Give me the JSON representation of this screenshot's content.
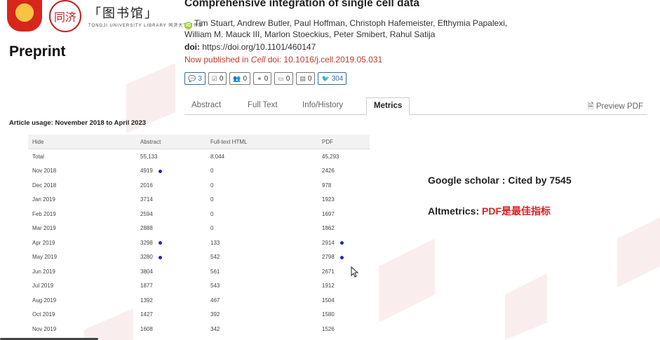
{
  "logos": {
    "seal_text": "同济",
    "library_cn": "「图书馆」",
    "library_sub": "TONGJI UNIVERSITY LIBRARY 同济大学图书馆"
  },
  "left_label": "Preprint",
  "article": {
    "title": "Comprehensive integration of single cell data",
    "authors_line1": "Tim Stuart, Andrew Butler, Paul Hoffman, Christoph Hafemeister, Efthymia Papalexi,",
    "authors_line2": "William M. Mauck III, Marlon Stoeckius, Peter Smibert, Rahul Satija",
    "doi_label": "doi:",
    "doi_value": "https://doi.org/10.1101/460147",
    "published_prefix": "Now published in",
    "published_journal": "Cell",
    "published_doi": "doi: 10.1016/j.cell.2019.05.031"
  },
  "badges": [
    {
      "icon": "comment-icon",
      "glyph": "💬",
      "count": "3"
    },
    {
      "icon": "check-icon",
      "glyph": "☑",
      "count": "0"
    },
    {
      "icon": "users-icon",
      "glyph": "👥",
      "count": "0"
    },
    {
      "icon": "share-icon",
      "glyph": "⚭",
      "count": "0"
    },
    {
      "icon": "monitor-icon",
      "glyph": "▭",
      "count": "0"
    },
    {
      "icon": "film-icon",
      "glyph": "▤",
      "count": "0"
    },
    {
      "icon": "twitter-icon",
      "glyph": "🐦",
      "count": "304"
    }
  ],
  "tabs": {
    "abstract": "Abstract",
    "full_text": "Full Text",
    "info_history": "Info/History",
    "metrics": "Metrics",
    "preview_pdf": "Preview PDF"
  },
  "usage": {
    "title": "Article usage: November 2018 to April 2023",
    "headers": [
      "Hide",
      "Abstract",
      "Full-text HTML",
      "PDF"
    ],
    "rows": [
      {
        "month": "Total",
        "abstract": "55,133",
        "html": "8,044",
        "pdf": "45,293",
        "dot_abstract": false,
        "dot_pdf": false
      },
      {
        "month": "Nov 2018",
        "abstract": "4919",
        "html": "0",
        "pdf": "2426",
        "dot_abstract": true,
        "dot_pdf": false
      },
      {
        "month": "Dec 2018",
        "abstract": "2016",
        "html": "0",
        "pdf": "978",
        "dot_abstract": false,
        "dot_pdf": false
      },
      {
        "month": "Jan 2019",
        "abstract": "3714",
        "html": "0",
        "pdf": "1923",
        "dot_abstract": false,
        "dot_pdf": false
      },
      {
        "month": "Feb 2019",
        "abstract": "2594",
        "html": "0",
        "pdf": "1697",
        "dot_abstract": false,
        "dot_pdf": false
      },
      {
        "month": "Mar 2019",
        "abstract": "2888",
        "html": "0",
        "pdf": "1862",
        "dot_abstract": false,
        "dot_pdf": false
      },
      {
        "month": "Apr 2019",
        "abstract": "3298",
        "html": "133",
        "pdf": "2914",
        "dot_abstract": true,
        "dot_pdf": true
      },
      {
        "month": "May 2019",
        "abstract": "3280",
        "html": "542",
        "pdf": "2798",
        "dot_abstract": true,
        "dot_pdf": true
      },
      {
        "month": "Jun 2019",
        "abstract": "3804",
        "html": "561",
        "pdf": "2671",
        "dot_abstract": false,
        "dot_pdf": false
      },
      {
        "month": "Jul 2019",
        "abstract": "1877",
        "html": "543",
        "pdf": "1912",
        "dot_abstract": false,
        "dot_pdf": false
      },
      {
        "month": "Aug 2019",
        "abstract": "1392",
        "html": "467",
        "pdf": "1504",
        "dot_abstract": false,
        "dot_pdf": false
      },
      {
        "month": "Oct 2019",
        "abstract": "1427",
        "html": "392",
        "pdf": "1580",
        "dot_abstract": false,
        "dot_pdf": false
      },
      {
        "month": "Nov 2019",
        "abstract": "1608",
        "html": "342",
        "pdf": "1526",
        "dot_abstract": false,
        "dot_pdf": false
      }
    ]
  },
  "notes": {
    "scholar": "Google scholar : Cited by 7545",
    "altmetrics_label": "Altmetrics: ",
    "altmetrics_value": "PDF是最佳指标"
  },
  "colors": {
    "accent_red": "#e02020",
    "dot_blue": "#1a24d6",
    "link_blue": "#2b6cb0"
  }
}
